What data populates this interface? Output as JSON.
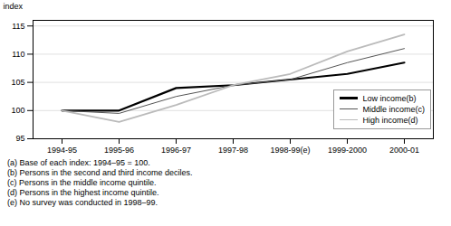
{
  "chart_data": {
    "type": "line",
    "categories": [
      "1994-95",
      "1995-96",
      "1996-97",
      "1997-98",
      "1998-99(e)",
      "1999-2000",
      "2000-01"
    ],
    "series": [
      {
        "name": "Low income(b)",
        "color": "#000000",
        "values": [
          100.0,
          100.0,
          104.0,
          104.5,
          105.5,
          106.5,
          108.5
        ]
      },
      {
        "name": "Middle income(c)",
        "color": "#555555",
        "values": [
          100.0,
          99.5,
          102.5,
          104.5,
          105.5,
          108.5,
          111.0
        ]
      },
      {
        "name": "High income(d)",
        "color": "#bbbbbb",
        "values": [
          100.0,
          98.0,
          101.0,
          104.5,
          106.5,
          110.5,
          113.5
        ]
      }
    ],
    "ylabel": "index",
    "ylim": [
      95,
      116
    ],
    "yticks": [
      95,
      100,
      105,
      110,
      115
    ],
    "grid": true,
    "legend": "lower right",
    "annotations": [
      "(a) Base of each index: 1994–95 = 100.",
      "(b) Persons in the second and third income deciles.",
      "(c) Persons in the middle income quintile.",
      "(d) Persons in the highest income quintile.",
      "(e) No survey was conducted in 1998–99."
    ]
  }
}
